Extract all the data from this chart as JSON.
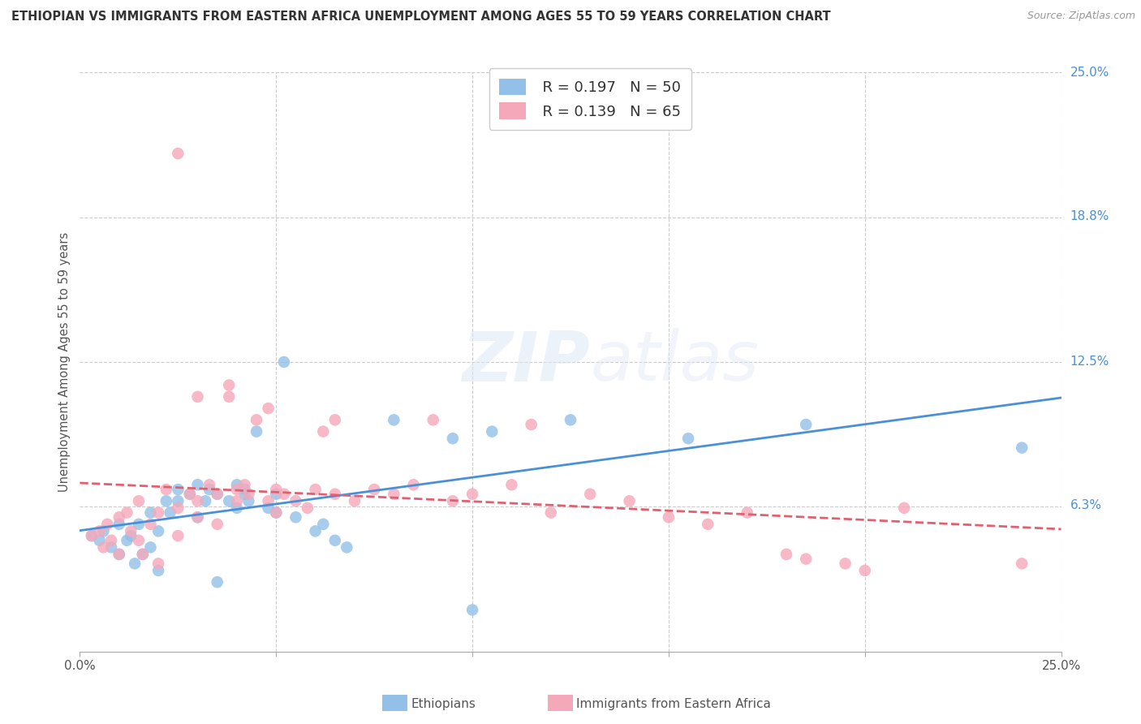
{
  "title": "ETHIOPIAN VS IMMIGRANTS FROM EASTERN AFRICA UNEMPLOYMENT AMONG AGES 55 TO 59 YEARS CORRELATION CHART",
  "source": "Source: ZipAtlas.com",
  "ylabel": "Unemployment Among Ages 55 to 59 years",
  "xlim": [
    0.0,
    0.25
  ],
  "ylim": [
    0.0,
    0.25
  ],
  "legend_r1": "R = 0.197",
  "legend_n1": "N = 50",
  "legend_r2": "R = 0.139",
  "legend_n2": "N = 65",
  "color_blue": "#92c0e8",
  "color_pink": "#f5a8ba",
  "line_color_blue": "#4a90d9",
  "line_color_pink": "#e06070",
  "watermark_zip": "ZIP",
  "watermark_atlas": "atlas",
  "background_color": "#ffffff",
  "blue_points_x": [
    0.003,
    0.005,
    0.006,
    0.008,
    0.01,
    0.01,
    0.012,
    0.013,
    0.014,
    0.015,
    0.016,
    0.018,
    0.018,
    0.02,
    0.02,
    0.022,
    0.023,
    0.025,
    0.025,
    0.028,
    0.03,
    0.03,
    0.032,
    0.033,
    0.035,
    0.035,
    0.038,
    0.04,
    0.04,
    0.042,
    0.042,
    0.043,
    0.045,
    0.048,
    0.05,
    0.05,
    0.052,
    0.055,
    0.06,
    0.062,
    0.065,
    0.068,
    0.08,
    0.095,
    0.1,
    0.105,
    0.125,
    0.155,
    0.185,
    0.24
  ],
  "blue_points_y": [
    0.05,
    0.048,
    0.052,
    0.045,
    0.055,
    0.042,
    0.048,
    0.05,
    0.038,
    0.055,
    0.042,
    0.06,
    0.045,
    0.052,
    0.035,
    0.065,
    0.06,
    0.07,
    0.065,
    0.068,
    0.072,
    0.058,
    0.065,
    0.07,
    0.068,
    0.03,
    0.065,
    0.072,
    0.062,
    0.068,
    0.07,
    0.065,
    0.095,
    0.062,
    0.068,
    0.06,
    0.125,
    0.058,
    0.052,
    0.055,
    0.048,
    0.045,
    0.1,
    0.092,
    0.018,
    0.095,
    0.1,
    0.092,
    0.098,
    0.088
  ],
  "pink_points_x": [
    0.003,
    0.005,
    0.006,
    0.007,
    0.008,
    0.01,
    0.01,
    0.012,
    0.013,
    0.015,
    0.015,
    0.016,
    0.018,
    0.02,
    0.02,
    0.022,
    0.025,
    0.025,
    0.028,
    0.03,
    0.03,
    0.033,
    0.035,
    0.035,
    0.038,
    0.04,
    0.04,
    0.042,
    0.043,
    0.045,
    0.048,
    0.05,
    0.05,
    0.052,
    0.055,
    0.058,
    0.06,
    0.062,
    0.065,
    0.07,
    0.075,
    0.08,
    0.085,
    0.09,
    0.095,
    0.1,
    0.11,
    0.115,
    0.12,
    0.13,
    0.14,
    0.15,
    0.16,
    0.17,
    0.18,
    0.185,
    0.195,
    0.2,
    0.21,
    0.24,
    0.025,
    0.03,
    0.038,
    0.048,
    0.065
  ],
  "pink_points_y": [
    0.05,
    0.052,
    0.045,
    0.055,
    0.048,
    0.042,
    0.058,
    0.06,
    0.052,
    0.048,
    0.065,
    0.042,
    0.055,
    0.06,
    0.038,
    0.07,
    0.062,
    0.05,
    0.068,
    0.058,
    0.065,
    0.072,
    0.068,
    0.055,
    0.115,
    0.065,
    0.07,
    0.072,
    0.068,
    0.1,
    0.065,
    0.07,
    0.06,
    0.068,
    0.065,
    0.062,
    0.07,
    0.095,
    0.068,
    0.065,
    0.07,
    0.068,
    0.072,
    0.1,
    0.065,
    0.068,
    0.072,
    0.098,
    0.06,
    0.068,
    0.065,
    0.058,
    0.055,
    0.06,
    0.042,
    0.04,
    0.038,
    0.035,
    0.062,
    0.038,
    0.215,
    0.11,
    0.11,
    0.105,
    0.1
  ]
}
